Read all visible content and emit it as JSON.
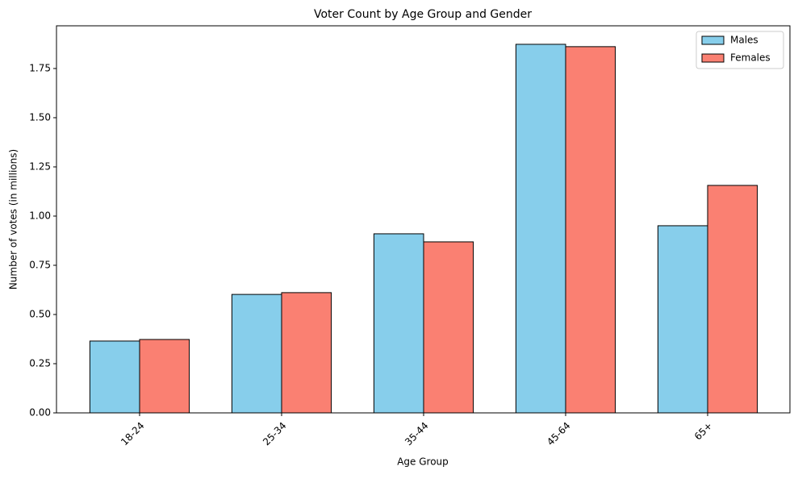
{
  "chart_data": {
    "type": "bar",
    "title": "Voter Count by Age Group and Gender",
    "x_label": "Age Group",
    "y_label": "Number of votes (in millions)",
    "categories": [
      "18-24",
      "25-34",
      "35-44",
      "45-64",
      "65+"
    ],
    "series": [
      {
        "name": "Males",
        "color": "#87ceeb",
        "values": [
          0.365,
          0.602,
          0.91,
          1.873,
          0.951
        ]
      },
      {
        "name": "Females",
        "color": "#fa8072",
        "values": [
          0.373,
          0.611,
          0.869,
          1.861,
          1.156
        ]
      }
    ],
    "ylim": [
      0,
      1.967
    ],
    "yticks": [
      {
        "value": 0,
        "label": "0.00"
      },
      {
        "value": 0.25,
        "label": "0.25"
      },
      {
        "value": 0.5,
        "label": "0.50"
      },
      {
        "value": 0.75,
        "label": "0.75"
      },
      {
        "value": 1,
        "label": "1.00"
      },
      {
        "value": 1.25,
        "label": "1.25"
      },
      {
        "value": 1.5,
        "label": "1.50"
      },
      {
        "value": 1.75,
        "label": "1.75"
      }
    ],
    "legend": "upper right",
    "grid": false
  }
}
